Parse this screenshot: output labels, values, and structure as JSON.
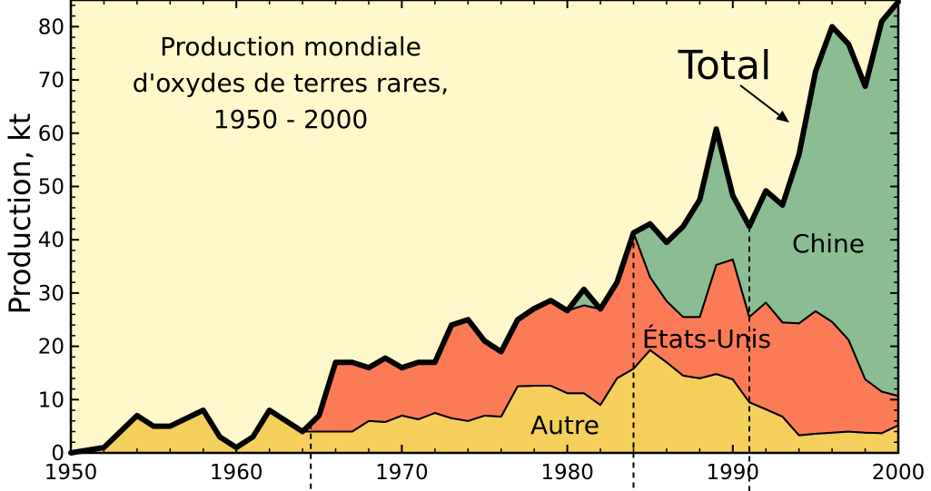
{
  "chart_data": {
    "type": "area",
    "title_lines": [
      "Production mondiale",
      "d'oxydes de terres rares,",
      "1950 - 2000"
    ],
    "ylabel": "Production, kt",
    "xlabel": "",
    "xlim": [
      1950,
      2000
    ],
    "ylim": [
      0,
      85
    ],
    "xticks": [
      1950,
      1960,
      1970,
      1980,
      1990,
      2000
    ],
    "yticks": [
      0,
      10,
      20,
      30,
      40,
      50,
      60,
      70,
      80
    ],
    "x": [
      1950,
      1952,
      1954,
      1955,
      1956,
      1958,
      1959,
      1960,
      1961,
      1962,
      1964,
      1965,
      1966,
      1967,
      1968,
      1969,
      1970,
      1971,
      1972,
      1973,
      1974,
      1975,
      1976,
      1977,
      1978,
      1979,
      1980,
      1981,
      1982,
      1983,
      1984,
      1985,
      1986,
      1987,
      1988,
      1989,
      1990,
      1991,
      1992,
      1993,
      1994,
      1995,
      1996,
      1997,
      1998,
      1999,
      2000
    ],
    "series": [
      {
        "name": "Autre",
        "values": [
          0,
          1,
          7,
          5,
          5,
          8,
          3,
          1,
          3,
          8,
          4,
          4,
          4,
          4,
          6,
          5.8,
          7,
          6.3,
          7.5,
          6.5,
          6,
          7,
          6.8,
          12.5,
          12.6,
          12.6,
          11.2,
          11.2,
          9,
          14,
          15.8,
          19.3,
          17,
          14.5,
          14,
          14.8,
          13.8,
          9.5,
          8.2,
          6.8,
          3.3,
          3.6,
          3.8,
          4,
          3.8,
          3.7,
          5.2
        ]
      },
      {
        "name": "États-Unis",
        "values": [
          0,
          0,
          0,
          0,
          0,
          0,
          0,
          0,
          0,
          0,
          0,
          3,
          13,
          13,
          10,
          12,
          9,
          10.7,
          9.5,
          17.5,
          19,
          14,
          12.2,
          12.5,
          14.5,
          16,
          15.5,
          16.5,
          18,
          18,
          25.5,
          13.7,
          11.5,
          11,
          11.5,
          20.5,
          22.5,
          16,
          20,
          17.7,
          21,
          23,
          20.8,
          17.2,
          10,
          7.8,
          5.5
        ]
      },
      {
        "name": "Chine",
        "values": [
          0,
          0,
          0,
          0,
          0,
          0,
          0,
          0,
          0,
          0,
          0,
          0,
          0,
          0,
          0,
          0,
          0,
          0,
          0,
          0,
          0,
          0,
          0,
          0,
          0,
          0,
          0,
          3,
          0,
          0,
          0,
          10,
          11,
          17,
          22,
          25.5,
          12,
          17,
          21,
          22,
          31.7,
          45,
          55.4,
          55.5,
          55,
          69.5,
          74
        ]
      }
    ],
    "total_label": "Total",
    "area_colors": {
      "Autre": "#f5cf5c",
      "États-Unis": "#fb7b56",
      "Chine": "#8bbd93"
    },
    "background_color": "#fef8cb",
    "marker_years": [
      1964.5,
      1984,
      1991
    ]
  }
}
